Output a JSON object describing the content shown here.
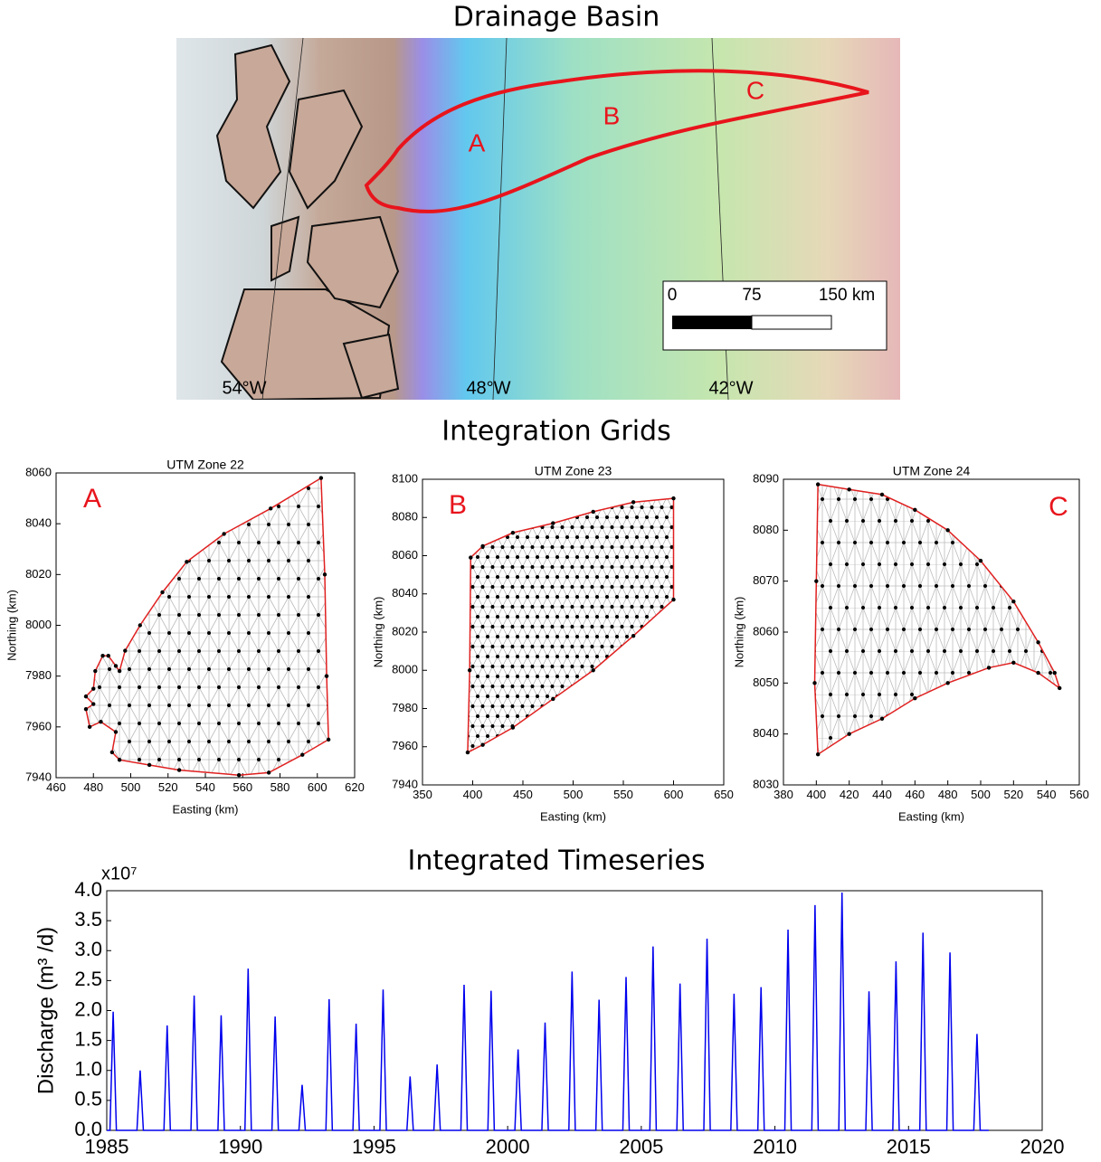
{
  "map": {
    "title": "Drainage Basin",
    "region_labels": [
      "A",
      "B",
      "C"
    ],
    "longitudes": [
      "54°W",
      "48°W",
      "42°W"
    ],
    "scale_labels": [
      "0",
      "75",
      "150 km"
    ]
  },
  "grids_title": "Integration Grids",
  "chart_data": [
    {
      "type": "mesh",
      "title": "UTM Zone 22",
      "panel_label": "A",
      "xlabel": "Easting (km)",
      "ylabel": "Northing (km)",
      "xlim": [
        460,
        620
      ],
      "xticks": [
        460,
        480,
        500,
        520,
        540,
        560,
        580,
        600,
        620
      ],
      "ylim": [
        7940,
        8060
      ],
      "yticks": [
        7940,
        7960,
        7980,
        8000,
        8020,
        8040,
        8060
      ],
      "boundary": {
        "color": "#e02020",
        "x": [
          602,
          604,
          605,
          606,
          592,
          574,
          558,
          526,
          510,
          494,
          490,
          492,
          484,
          478,
          476,
          480,
          476,
          480,
          481,
          485,
          488,
          492,
          494,
          497,
          505,
          517,
          530,
          550,
          575
        ],
        "y": [
          8058,
          8020,
          7980,
          7955,
          7949,
          7942,
          7941,
          7943,
          7945,
          7947,
          7950,
          7958,
          7962,
          7960,
          7967,
          7969,
          7972,
          7975,
          7982,
          7988,
          7988,
          7984,
          7982,
          7990,
          8000,
          8013,
          8025,
          8036,
          8046
        ]
      }
    },
    {
      "type": "mesh",
      "title": "UTM Zone 23",
      "panel_label": "B",
      "xlabel": "Easting (km)",
      "ylabel": "Northing (km)",
      "xlim": [
        350,
        650
      ],
      "xticks": [
        350,
        400,
        450,
        500,
        550,
        600,
        650
      ],
      "ylim": [
        7940,
        8100
      ],
      "yticks": [
        7940,
        7960,
        7980,
        8000,
        8020,
        8040,
        8060,
        8080,
        8100
      ],
      "boundary": {
        "color": "#e02020",
        "x": [
          395,
          397,
          398,
          410,
          440,
          480,
          520,
          560,
          600,
          600,
          560,
          520,
          480,
          440,
          410
        ],
        "y": [
          7957,
          8000,
          8059,
          8065,
          8072,
          8077,
          8083,
          8088,
          8090,
          8037,
          8018,
          8000,
          7985,
          7970,
          7961
        ]
      }
    },
    {
      "type": "mesh",
      "title": "UTM Zone 24",
      "panel_label": "C",
      "xlabel": "Easting (km)",
      "ylabel": "Northing (km)",
      "xlim": [
        380,
        560
      ],
      "xticks": [
        380,
        400,
        420,
        440,
        460,
        480,
        500,
        520,
        540,
        560
      ],
      "ylim": [
        8030,
        8090
      ],
      "yticks": [
        8030,
        8040,
        8050,
        8060,
        8070,
        8080,
        8090
      ],
      "boundary": {
        "color": "#e02020",
        "x": [
          401,
          420,
          440,
          460,
          480,
          500,
          520,
          535,
          545,
          548,
          535,
          520,
          505,
          480,
          460,
          440,
          420,
          401,
          399,
          400
        ],
        "y": [
          8089,
          8088,
          8087,
          8084,
          8080,
          8074,
          8066,
          8058,
          8052,
          8049,
          8052,
          8054,
          8053,
          8050,
          8047,
          8043,
          8040,
          8036,
          8050,
          8070
        ]
      }
    },
    {
      "type": "line",
      "title": "Integrated Timeseries",
      "ylabel": "Discharge (m³ /d)",
      "y_multiplier": "x10⁷",
      "xlim": [
        1985,
        2020
      ],
      "xticks": [
        1985,
        1990,
        1995,
        2000,
        2005,
        2010,
        2015,
        2020
      ],
      "ylim": [
        0,
        4
      ],
      "yticks": [
        {
          "value": 0,
          "label": "0.0"
        },
        0.5,
        {
          "value": 1,
          "label": "1.0"
        },
        1.5,
        {
          "value": 2,
          "label": "2.0"
        },
        2.5,
        {
          "value": 3,
          "label": "3.0"
        },
        3.5,
        {
          "value": 4,
          "label": "4.0"
        }
      ],
      "series": [
        {
          "color": "#0000ee",
          "x": [
            1985,
            1985.12,
            1985.24,
            1985.36,
            1986.13,
            1986.25,
            1986.37,
            1987.14,
            1987.26,
            1987.38,
            1988.15,
            1988.27,
            1988.39,
            1989.16,
            1989.28,
            1989.4,
            1990.17,
            1990.29,
            1990.41,
            1991.18,
            1991.3,
            1991.42,
            1992.19,
            1992.31,
            1992.43,
            1993.2,
            1993.32,
            1993.44,
            1994.21,
            1994.33,
            1994.45,
            1995.22,
            1995.34,
            1995.46,
            1996.23,
            1996.35,
            1996.47,
            1997.24,
            1997.36,
            1997.48,
            1998.25,
            1998.37,
            1998.49,
            1999.26,
            1999.38,
            1999.5,
            2000.27,
            2000.39,
            2000.51,
            2001.28,
            2001.4,
            2001.52,
            2002.29,
            2002.41,
            2002.53,
            2003.3,
            2003.42,
            2003.54,
            2004.31,
            2004.43,
            2004.55,
            2005.32,
            2005.44,
            2005.56,
            2006.33,
            2006.45,
            2006.57,
            2007.34,
            2007.46,
            2007.58,
            2008.35,
            2008.47,
            2008.59,
            2009.36,
            2009.48,
            2009.6,
            2010.37,
            2010.49,
            2010.61,
            2011.38,
            2011.5,
            2011.62,
            2012.39,
            2012.51,
            2012.63,
            2013.4,
            2013.52,
            2013.64,
            2014.41,
            2014.53,
            2014.65,
            2015.42,
            2015.54,
            2015.66,
            2016.43,
            2016.55,
            2016.67,
            2017.44,
            2017.56,
            2017.68,
            2018
          ],
          "values": [
            0,
            0,
            1.98,
            0,
            0,
            1.0,
            0,
            0,
            1.75,
            0,
            0,
            2.25,
            0,
            0,
            1.92,
            0,
            0,
            2.7,
            0,
            0,
            1.9,
            0,
            0,
            0.76,
            0,
            0,
            2.19,
            0,
            0,
            1.78,
            0,
            0,
            2.35,
            0,
            0,
            0.9,
            0,
            0,
            1.1,
            0,
            0,
            2.43,
            0,
            0,
            2.33,
            0,
            0,
            1.35,
            0,
            0,
            1.8,
            0,
            0,
            2.65,
            0,
            0,
            2.18,
            0,
            0,
            2.56,
            0,
            0,
            3.07,
            0,
            0,
            2.45,
            0,
            0,
            3.2,
            0,
            0,
            2.28,
            0,
            0,
            2.39,
            0,
            0,
            3.35,
            0,
            0,
            3.76,
            0,
            0,
            3.97,
            0,
            0,
            2.32,
            0,
            0,
            2.82,
            0,
            0,
            3.3,
            0,
            0,
            2.97,
            0,
            0,
            1.61,
            0,
            0
          ]
        }
      ]
    }
  ]
}
